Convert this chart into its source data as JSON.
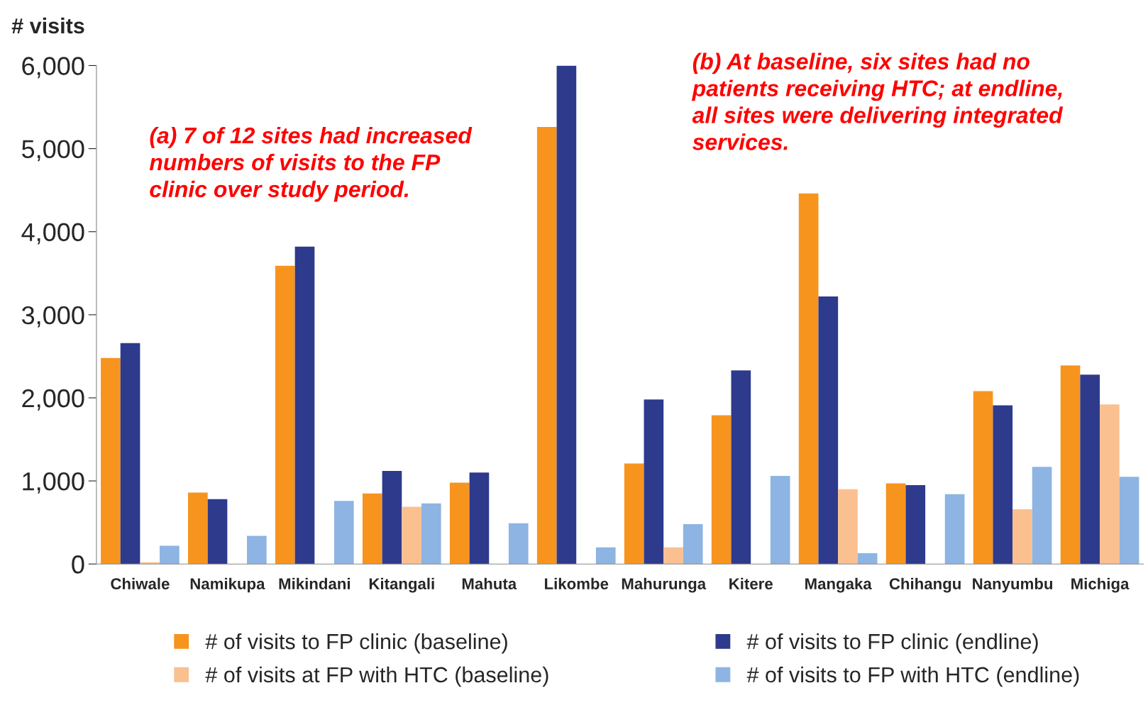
{
  "chart_data": {
    "type": "bar",
    "ylabel": "# visits",
    "categories": [
      "Chiwale",
      "Namikupa",
      "Mikindani",
      "Kitangali",
      "Mahuta",
      "Likombe",
      "Mahurunga",
      "Kitere",
      "Mangaka",
      "Chihangu",
      "Nanyumbu",
      "Michiga"
    ],
    "series": [
      {
        "name": "# of visits to FP clinic (baseline)",
        "color": "#f7941d",
        "values": [
          2480,
          860,
          3590,
          850,
          980,
          5260,
          1210,
          1790,
          4460,
          970,
          2080,
          2390
        ]
      },
      {
        "name": "# of visits to FP clinic (endline)",
        "color": "#2e3a8c",
        "values": [
          2660,
          780,
          3820,
          1120,
          1100,
          6000,
          1980,
          2330,
          3220,
          950,
          1910,
          2280
        ]
      },
      {
        "name": "# of visits at FP with HTC (baseline)",
        "color": "#fac090",
        "values": [
          20,
          0,
          0,
          690,
          0,
          0,
          200,
          0,
          900,
          0,
          660,
          1920
        ]
      },
      {
        "name": "# of visits to FP with HTC (endline)",
        "color": "#8db4e2",
        "values": [
          220,
          340,
          760,
          730,
          490,
          200,
          480,
          1060,
          130,
          840,
          1170,
          1050
        ]
      }
    ],
    "ylim": [
      0,
      6000
    ],
    "yticks": [
      {
        "value": 0,
        "label": "0"
      },
      {
        "value": 1000,
        "label": "1,000"
      },
      {
        "value": 2000,
        "label": "2,000"
      },
      {
        "value": 3000,
        "label": "3,000"
      },
      {
        "value": 4000,
        "label": "4,000"
      },
      {
        "value": 5000,
        "label": "5,000"
      },
      {
        "value": 6000,
        "label": "6,000"
      }
    ],
    "grid": false,
    "legend": "bottom",
    "annotations": [
      "(a) 7 of 12 sites had increased numbers of visits to the FP clinic over study period.",
      "(b) At baseline, six sites had no patients receiving HTC; at endline, all sites were delivering integrated services."
    ]
  }
}
